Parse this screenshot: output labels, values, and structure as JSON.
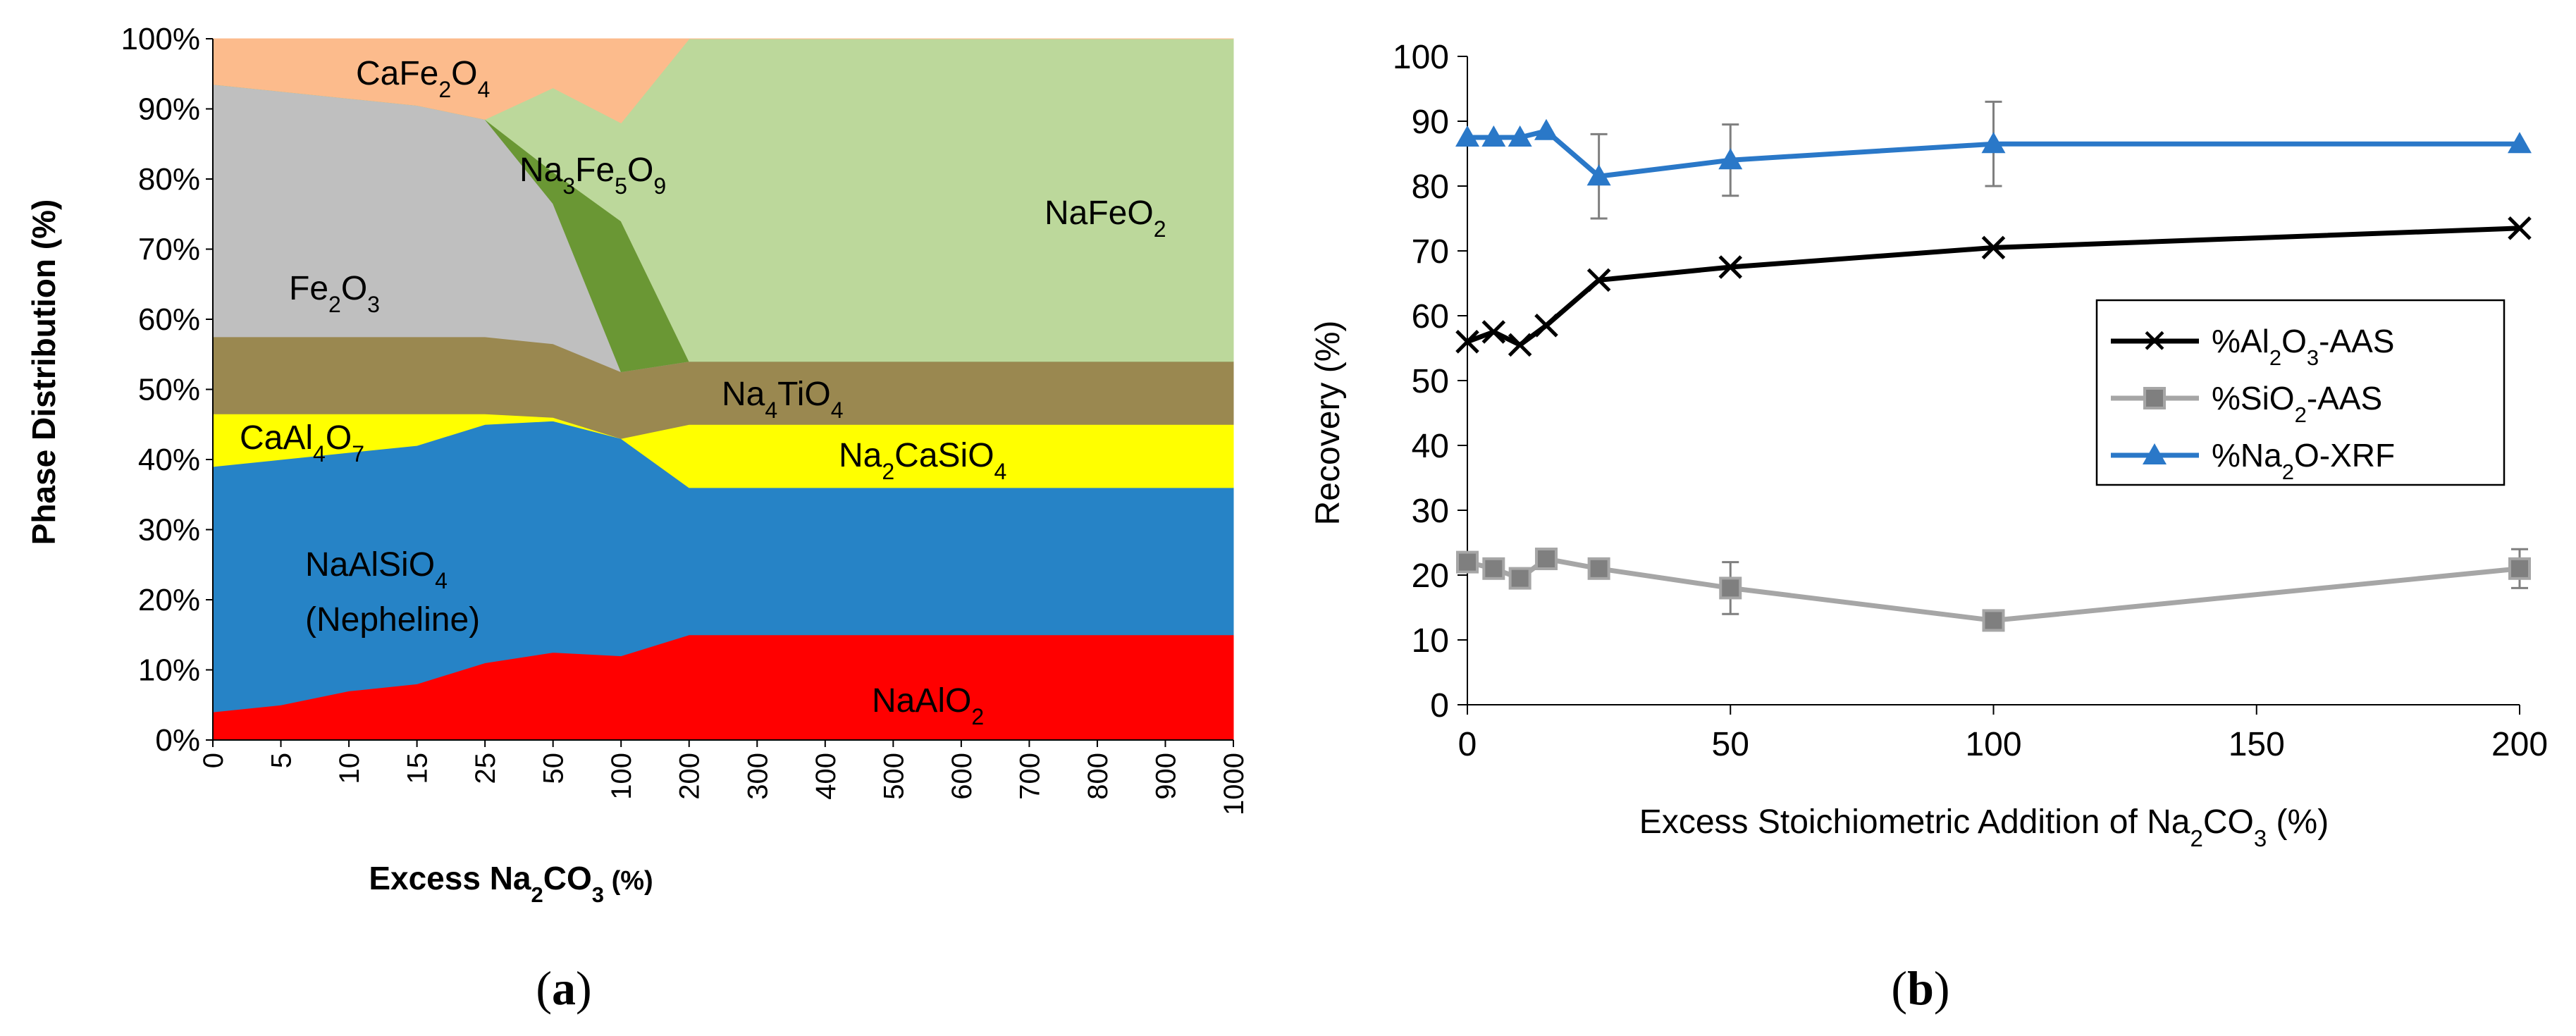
{
  "chart_data": [
    {
      "panel": "(a)",
      "type": "area",
      "stacked": true,
      "xlabel": "Excess Na₂CO₃ (%)",
      "ylabel": "Phase Distribution (%)",
      "ylim": [
        0,
        100
      ],
      "yticks": [
        "0%",
        "10%",
        "20%",
        "30%",
        "40%",
        "50%",
        "60%",
        "70%",
        "80%",
        "90%",
        "100%"
      ],
      "categories": [
        "0",
        "5",
        "10",
        "15",
        "25",
        "50",
        "100",
        "200",
        "300",
        "400",
        "500",
        "600",
        "700",
        "800",
        "900",
        "1000"
      ],
      "series": [
        {
          "name": "NaAlO₂",
          "color": "#ff0000",
          "values": [
            4,
            5,
            7,
            8,
            11,
            12.5,
            12,
            15,
            15,
            15,
            15,
            15,
            15,
            15,
            15,
            15
          ]
        },
        {
          "name": "NaAlSiO₄ (Nepheline)",
          "color": "#2683c6",
          "values": [
            35,
            35,
            34,
            34,
            34,
            33,
            31,
            21,
            21,
            21,
            21,
            21,
            21,
            21,
            21,
            21
          ]
        },
        {
          "name": "CaAl₄O₇",
          "color": "#ffff00",
          "values": [
            7.5,
            6.5,
            5.5,
            4.5,
            1.5,
            0,
            0,
            0,
            0,
            0,
            0,
            0,
            0,
            0,
            0,
            0
          ]
        },
        {
          "name": "Na₂CaSiO₄",
          "color": "#ffff00",
          "values": [
            0,
            0,
            0,
            0,
            0,
            0.5,
            0,
            9,
            9,
            9,
            9,
            9,
            9,
            9,
            9,
            9
          ]
        },
        {
          "name": "Na₄TiO₄",
          "color": "#9a8850",
          "values": [
            11,
            11,
            11,
            11,
            11,
            10.5,
            9.5,
            9,
            9,
            9,
            9,
            9,
            9,
            9,
            9,
            9
          ]
        },
        {
          "name": "Fe₂O₃",
          "color": "#bfbfbf",
          "values": [
            36,
            35,
            34,
            33,
            31,
            20,
            0,
            0,
            0,
            0,
            0,
            0,
            0,
            0,
            0,
            0
          ]
        },
        {
          "name": "Na₃Fe₅O₉",
          "color": "#6a9734",
          "values": [
            0,
            0,
            0,
            0,
            0,
            4.5,
            21.5,
            0,
            0,
            0,
            0,
            0,
            0,
            0,
            0,
            0
          ]
        },
        {
          "name": "NaFeO₂",
          "color": "#bcd89b",
          "values": [
            0,
            0,
            0,
            0,
            0,
            12,
            14,
            46,
            46,
            46,
            46,
            46,
            46,
            46,
            46,
            46
          ]
        },
        {
          "name": "CaFe₂O₄",
          "color": "#fcbb8c",
          "values": [
            6.5,
            7.5,
            8.5,
            9.5,
            11.5,
            7,
            12,
            0,
            0,
            0,
            0,
            0,
            0,
            0,
            0,
            0
          ]
        }
      ]
    },
    {
      "panel": "(b)",
      "type": "line",
      "xlabel": "Excess Stoichiometric Addition of Na₂CO₃ (%)",
      "ylabel": "Recovery (%)",
      "xlim": [
        0,
        200
      ],
      "ylim": [
        0,
        100
      ],
      "xticks": [
        0,
        50,
        100,
        150,
        200
      ],
      "yticks": [
        0,
        10,
        20,
        30,
        40,
        50,
        60,
        70,
        80,
        90,
        100
      ],
      "x": [
        0,
        5,
        10,
        15,
        25,
        50,
        100,
        200
      ],
      "series": [
        {
          "name": "%Al₂O₃-AAS",
          "color": "#000000",
          "marker": "x",
          "values": [
            56,
            57.5,
            55.5,
            58.5,
            65.5,
            67.5,
            70.5,
            73.5
          ],
          "errors": [
            0,
            0,
            0,
            0,
            0,
            0,
            0,
            0
          ]
        },
        {
          "name": "%SiO₂-AAS",
          "color": "#a6a6a6",
          "marker": "square",
          "values": [
            22,
            21,
            19.5,
            22.5,
            21,
            18,
            13,
            21
          ],
          "errors": [
            0,
            0,
            0,
            0,
            1.5,
            4,
            0,
            3
          ]
        },
        {
          "name": "%Na₂O-XRF",
          "color": "#2a78c8",
          "marker": "triangle",
          "values": [
            87.5,
            87.5,
            87.5,
            88.5,
            81.5,
            84,
            86.5,
            86.5
          ],
          "errors": [
            0,
            0,
            0,
            0,
            6.5,
            5.5,
            6.5,
            0
          ]
        }
      ]
    }
  ],
  "panel_a": {
    "labels": {
      "cafe2o4": {
        "t": "CaFe",
        "s1": "2",
        "t2": "O",
        "s2": "4"
      },
      "na3fe5o9": {
        "t": "Na",
        "s1": "3",
        "t2": "Fe",
        "s2": "5",
        "t3": "O",
        "s3": "9"
      },
      "nafeo2": {
        "t": "NaFeO",
        "s1": "2"
      },
      "fe2o3": {
        "t": "Fe",
        "s1": "2",
        "t2": "O",
        "s2": "3"
      },
      "na4tio4": {
        "t": "Na",
        "s1": "4",
        "t2": "TiO",
        "s2": "4"
      },
      "caal4o7": {
        "t": "CaAl",
        "s1": "4",
        "t2": "O",
        "s2": "7"
      },
      "na2casio4": {
        "t": "Na",
        "s1": "2",
        "t2": "CaSiO",
        "s2": "4"
      },
      "naalsio4": {
        "t": "NaAlSiO",
        "s1": "4"
      },
      "nepheline": "(Nepheline)",
      "naalo2": {
        "t": "NaAlO",
        "s1": "2"
      }
    },
    "xtitle": {
      "t": "Excess Na",
      "s1": "2",
      "t2": "CO",
      "s2": "3",
      "t3": " (%)"
    },
    "ytitle": "Phase Distribution  (%)",
    "caption": {
      "open": "(",
      "letter": "a",
      "close": ")"
    }
  },
  "panel_b": {
    "xtitle": {
      "t": "Excess Stoichiometric Addition of Na",
      "s1": "2",
      "t2": "CO",
      "s2": "3",
      "t3": " (%)"
    },
    "ytitle": "Recovery  (%)",
    "legend": [
      {
        "t": "%Al",
        "s1": "2",
        "t2": "O",
        "s2": "3",
        "t3": "-AAS"
      },
      {
        "t": "%SiO",
        "s1": "2",
        "t2": "-AAS"
      },
      {
        "t": "%Na",
        "s1": "2",
        "t2": "O-XRF"
      }
    ],
    "caption": {
      "open": "(",
      "letter": "b",
      "close": ")"
    }
  }
}
